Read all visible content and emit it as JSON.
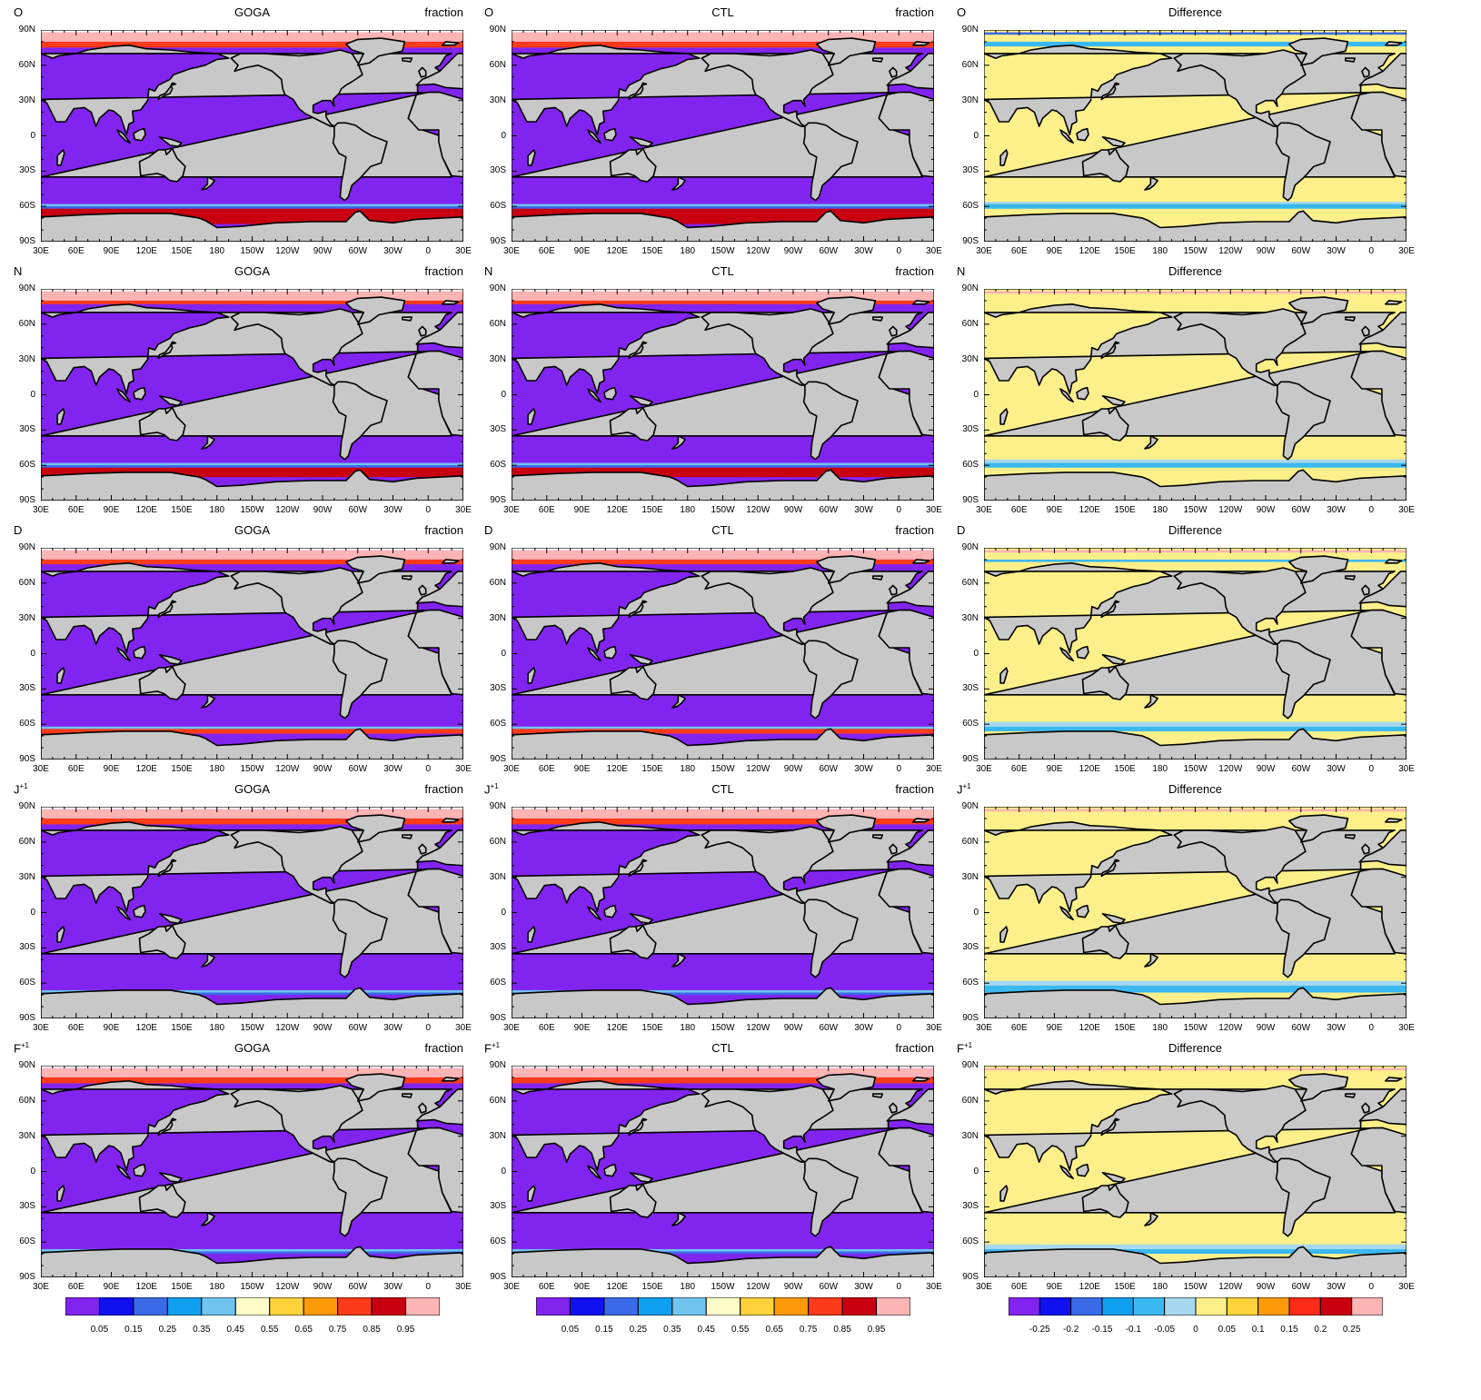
{
  "columns": [
    {
      "title": "GOGA",
      "right_label": "fraction",
      "kind": "abs"
    },
    {
      "title": "CTL",
      "right_label": "fraction",
      "kind": "abs"
    },
    {
      "title": "Difference",
      "right_label": "",
      "kind": "diff"
    }
  ],
  "rows": [
    {
      "month": "O",
      "sup": ""
    },
    {
      "month": "N",
      "sup": ""
    },
    {
      "month": "D",
      "sup": ""
    },
    {
      "month": "J",
      "sup": "+1"
    },
    {
      "month": "F",
      "sup": "+1"
    }
  ],
  "lat_labels": [
    "90N",
    "60N",
    "30N",
    "0",
    "30S",
    "60S",
    "90S"
  ],
  "lon_labels": [
    "30E",
    "60E",
    "90E",
    "120E",
    "150E",
    "180",
    "150W",
    "120W",
    "90W",
    "60W",
    "30W",
    "0",
    "30E"
  ],
  "colorbar_abs": {
    "colors": [
      "#8224f0",
      "#1010f0",
      "#3a6ae8",
      "#11a0f0",
      "#70c4f0",
      "#fffcc8",
      "#fdd23a",
      "#fd9a0a",
      "#fd3a1a",
      "#c80010",
      "#fcb4b4"
    ],
    "labels": [
      "0.05",
      "0.15",
      "0.25",
      "0.35",
      "0.45",
      "0.55",
      "0.65",
      "0.75",
      "0.85",
      "0.95"
    ]
  },
  "colorbar_diff": {
    "colors": [
      "#8224f0",
      "#1010f0",
      "#3a6ae8",
      "#11a0f0",
      "#3ab8f0",
      "#a8d8f0",
      "#fdf08a",
      "#fdd23a",
      "#fd9a0a",
      "#fd2a1a",
      "#c80010",
      "#fcb4b4"
    ],
    "labels": [
      "-0.25",
      "-0.2",
      "-0.15",
      "-0.1",
      "-0.05",
      "0",
      "0.05",
      "0.1",
      "0.15",
      "0.2",
      "0.25"
    ]
  },
  "colors": {
    "land": "#c8c8c8",
    "ocean_abs": "#8224f0",
    "ocean_diff": "#fdf08a",
    "ice_full": "#fcb4b4",
    "ice_high": "#c80010",
    "ice_mid": "#fd3a1a",
    "edge_blue": "#3a6ae8",
    "edge_cyan": "#70c4f0",
    "diff_neg": "#3ab8f0",
    "diff_neg2": "#a8d8f0"
  }
}
